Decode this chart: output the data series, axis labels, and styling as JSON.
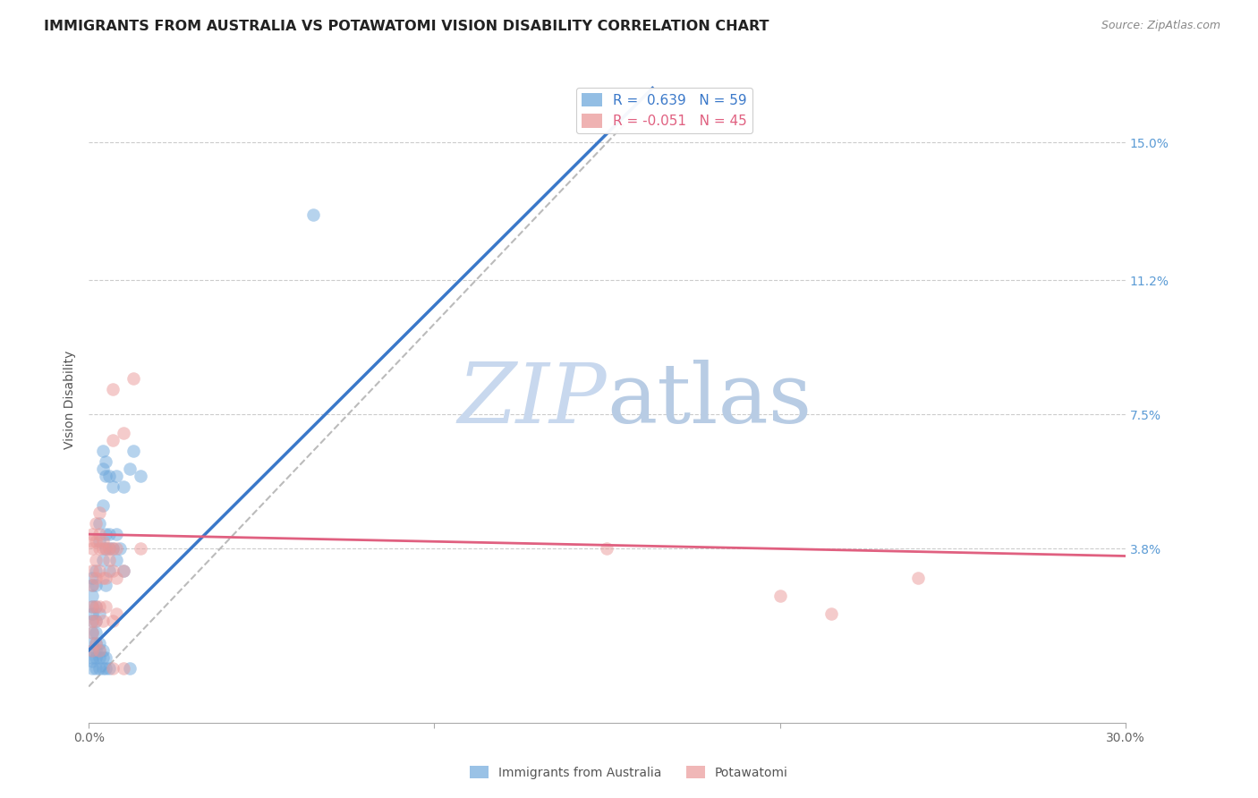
{
  "title": "IMMIGRANTS FROM AUSTRALIA VS POTAWATOMI VISION DISABILITY CORRELATION CHART",
  "source": "Source: ZipAtlas.com",
  "ylabel": "Vision Disability",
  "ytick_labels": [
    "15.0%",
    "11.2%",
    "7.5%",
    "3.8%"
  ],
  "ytick_values": [
    0.15,
    0.112,
    0.075,
    0.038
  ],
  "xlim": [
    0.0,
    0.3
  ],
  "ylim": [
    -0.01,
    0.168
  ],
  "blue_color": "#6fa8dc",
  "pink_color": "#ea9999",
  "blue_line_color": "#3a78c9",
  "pink_line_color": "#e06080",
  "diagonal_color": "#bbbbbb",
  "watermark_color": "#ccd9ee",
  "grid_color": "#cccccc",
  "title_fontsize": 11.5,
  "axis_label_fontsize": 10,
  "tick_fontsize": 10,
  "legend_fontsize": 11,
  "blue_scatter": [
    [
      0.001,
      0.005
    ],
    [
      0.001,
      0.007
    ],
    [
      0.001,
      0.008
    ],
    [
      0.001,
      0.01
    ],
    [
      0.001,
      0.012
    ],
    [
      0.001,
      0.015
    ],
    [
      0.001,
      0.018
    ],
    [
      0.001,
      0.02
    ],
    [
      0.001,
      0.022
    ],
    [
      0.001,
      0.025
    ],
    [
      0.001,
      0.028
    ],
    [
      0.001,
      0.03
    ],
    [
      0.002,
      0.005
    ],
    [
      0.002,
      0.008
    ],
    [
      0.002,
      0.01
    ],
    [
      0.002,
      0.012
    ],
    [
      0.002,
      0.015
    ],
    [
      0.002,
      0.018
    ],
    [
      0.002,
      0.022
    ],
    [
      0.002,
      0.028
    ],
    [
      0.002,
      0.032
    ],
    [
      0.003,
      0.005
    ],
    [
      0.003,
      0.008
    ],
    [
      0.003,
      0.01
    ],
    [
      0.003,
      0.012
    ],
    [
      0.003,
      0.02
    ],
    [
      0.003,
      0.04
    ],
    [
      0.003,
      0.045
    ],
    [
      0.004,
      0.005
    ],
    [
      0.004,
      0.008
    ],
    [
      0.004,
      0.01
    ],
    [
      0.004,
      0.035
    ],
    [
      0.004,
      0.05
    ],
    [
      0.004,
      0.06
    ],
    [
      0.004,
      0.065
    ],
    [
      0.005,
      0.005
    ],
    [
      0.005,
      0.008
    ],
    [
      0.005,
      0.028
    ],
    [
      0.005,
      0.038
    ],
    [
      0.005,
      0.042
    ],
    [
      0.005,
      0.058
    ],
    [
      0.005,
      0.062
    ],
    [
      0.006,
      0.005
    ],
    [
      0.006,
      0.032
    ],
    [
      0.006,
      0.038
    ],
    [
      0.006,
      0.042
    ],
    [
      0.006,
      0.058
    ],
    [
      0.007,
      0.038
    ],
    [
      0.007,
      0.055
    ],
    [
      0.008,
      0.035
    ],
    [
      0.008,
      0.042
    ],
    [
      0.008,
      0.058
    ],
    [
      0.009,
      0.038
    ],
    [
      0.01,
      0.032
    ],
    [
      0.01,
      0.055
    ],
    [
      0.012,
      0.005
    ],
    [
      0.012,
      0.06
    ],
    [
      0.013,
      0.065
    ],
    [
      0.015,
      0.058
    ],
    [
      0.065,
      0.13
    ]
  ],
  "pink_scatter": [
    [
      0.001,
      0.01
    ],
    [
      0.001,
      0.015
    ],
    [
      0.001,
      0.018
    ],
    [
      0.001,
      0.022
    ],
    [
      0.001,
      0.028
    ],
    [
      0.001,
      0.032
    ],
    [
      0.001,
      0.038
    ],
    [
      0.001,
      0.04
    ],
    [
      0.001,
      0.042
    ],
    [
      0.002,
      0.012
    ],
    [
      0.002,
      0.018
    ],
    [
      0.002,
      0.022
    ],
    [
      0.002,
      0.03
    ],
    [
      0.002,
      0.035
    ],
    [
      0.002,
      0.04
    ],
    [
      0.002,
      0.045
    ],
    [
      0.003,
      0.01
    ],
    [
      0.003,
      0.022
    ],
    [
      0.003,
      0.032
    ],
    [
      0.003,
      0.038
    ],
    [
      0.003,
      0.042
    ],
    [
      0.003,
      0.048
    ],
    [
      0.004,
      0.018
    ],
    [
      0.004,
      0.03
    ],
    [
      0.004,
      0.038
    ],
    [
      0.004,
      0.04
    ],
    [
      0.005,
      0.022
    ],
    [
      0.005,
      0.03
    ],
    [
      0.005,
      0.038
    ],
    [
      0.006,
      0.035
    ],
    [
      0.006,
      0.038
    ],
    [
      0.007,
      0.005
    ],
    [
      0.007,
      0.018
    ],
    [
      0.007,
      0.032
    ],
    [
      0.007,
      0.038
    ],
    [
      0.007,
      0.068
    ],
    [
      0.007,
      0.082
    ],
    [
      0.008,
      0.02
    ],
    [
      0.008,
      0.03
    ],
    [
      0.008,
      0.038
    ],
    [
      0.01,
      0.005
    ],
    [
      0.01,
      0.032
    ],
    [
      0.01,
      0.07
    ],
    [
      0.013,
      0.085
    ],
    [
      0.015,
      0.038
    ],
    [
      0.15,
      0.038
    ],
    [
      0.2,
      0.025
    ],
    [
      0.215,
      0.02
    ],
    [
      0.24,
      0.03
    ]
  ],
  "blue_line_manual": {
    "x0": 0.0,
    "y0": 0.01,
    "x1": 0.1,
    "y1": 0.105
  },
  "pink_line_manual": {
    "x0": 0.0,
    "y0": 0.042,
    "x1": 0.3,
    "y1": 0.036
  }
}
